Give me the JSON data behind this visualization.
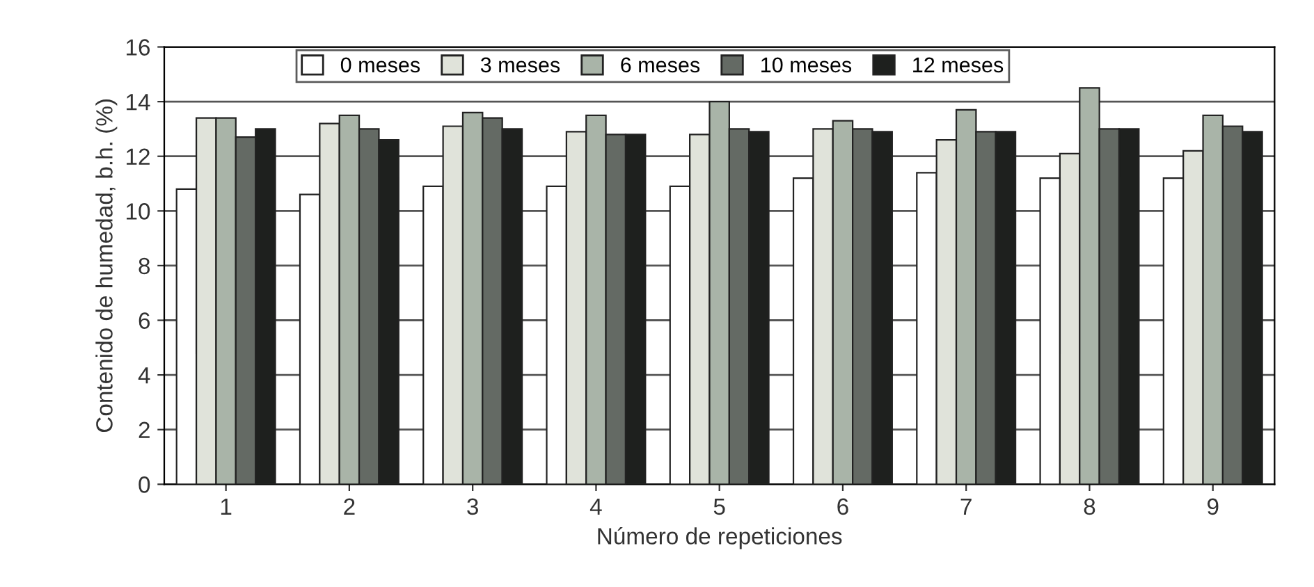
{
  "chart_data": {
    "type": "bar",
    "xlabel": "Número de repeticiones",
    "ylabel": "Contenido de humedad, b.h. (%)",
    "categories": [
      "1",
      "2",
      "3",
      "4",
      "5",
      "6",
      "7",
      "8",
      "9"
    ],
    "series": [
      {
        "name": "0 meses",
        "color": "#ffffff",
        "values": [
          10.8,
          10.6,
          10.9,
          10.9,
          10.9,
          11.2,
          11.4,
          11.2,
          11.2
        ]
      },
      {
        "name": "3 meses",
        "color": "#e0e3da",
        "values": [
          13.4,
          13.2,
          13.1,
          12.9,
          12.8,
          13.0,
          12.6,
          12.1,
          12.2
        ]
      },
      {
        "name": "6 meses",
        "color": "#a9b4a8",
        "values": [
          13.4,
          13.5,
          13.6,
          13.5,
          14.0,
          13.3,
          13.7,
          14.5,
          13.5
        ]
      },
      {
        "name": "10 meses",
        "color": "#646a64",
        "values": [
          12.7,
          13.0,
          13.4,
          12.8,
          13.0,
          13.0,
          12.9,
          13.0,
          13.1
        ]
      },
      {
        "name": "12 meses",
        "color": "#1e201e",
        "values": [
          13.0,
          12.6,
          13.0,
          12.8,
          12.9,
          12.9,
          12.9,
          13.0,
          12.9
        ]
      }
    ],
    "ylim": [
      0,
      16
    ],
    "yticks": [
      0,
      2,
      4,
      6,
      8,
      10,
      12,
      14,
      16
    ],
    "grid": "y",
    "legend": "top"
  }
}
